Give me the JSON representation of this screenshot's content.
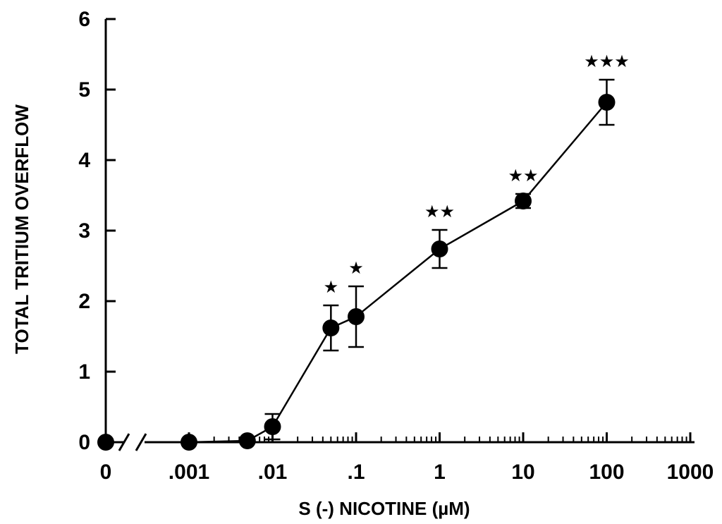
{
  "chart_data": {
    "type": "scatter",
    "xlabel": "S (-) NICOTINE (µM)",
    "ylabel": "TOTAL TRITIUM OVERFLOW",
    "xscale": "log (with broken axis at 0)",
    "xlim": [
      0.0001,
      1000
    ],
    "ylim": [
      0,
      6
    ],
    "x_tick_labels": [
      "0",
      ".001",
      ".01",
      ".1",
      "1",
      "10",
      "100",
      "1000"
    ],
    "y_tick_labels": [
      "0",
      "1",
      "2",
      "3",
      "4",
      "5",
      "6"
    ],
    "grid": false,
    "points": [
      {
        "x": 0,
        "y": 0.0,
        "err": 0.0,
        "sig": ""
      },
      {
        "x": 0.001,
        "y": 0.0,
        "err": 0.0,
        "sig": ""
      },
      {
        "x": 0.005,
        "y": 0.02,
        "err": 0.0,
        "sig": ""
      },
      {
        "x": 0.01,
        "y": 0.22,
        "err": 0.18,
        "sig": ""
      },
      {
        "x": 0.05,
        "y": 1.62,
        "err": 0.32,
        "sig": "★"
      },
      {
        "x": 0.1,
        "y": 1.78,
        "err": 0.43,
        "sig": "★"
      },
      {
        "x": 1,
        "y": 2.74,
        "err": 0.27,
        "sig": "★★"
      },
      {
        "x": 10,
        "y": 3.42,
        "err": 0.1,
        "sig": "★★"
      },
      {
        "x": 100,
        "y": 4.82,
        "err": 0.32,
        "sig": "★★★"
      }
    ]
  }
}
